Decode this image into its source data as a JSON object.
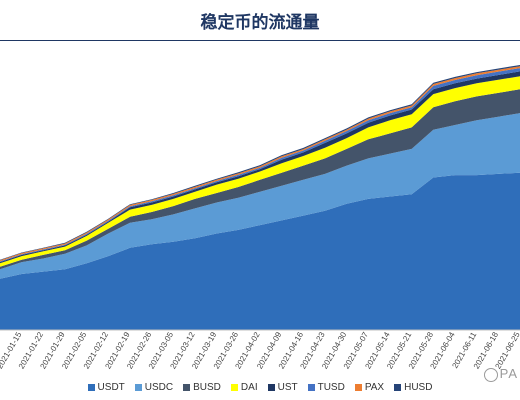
{
  "chart_data": {
    "type": "area",
    "title": "稳定币的流通量",
    "xlabel": "",
    "ylabel": "",
    "stacked": true,
    "grid": false,
    "legend_position": "bottom",
    "x": [
      "2021-01-08",
      "2021-01-15",
      "2021-01-22",
      "2021-01-29",
      "2021-02-05",
      "2021-02-12",
      "2021-02-19",
      "2021-02-26",
      "2021-03-05",
      "2021-03-12",
      "2021-03-19",
      "2021-03-26",
      "2021-04-02",
      "2021-04-09",
      "2021-04-16",
      "2021-04-23",
      "2021-04-30",
      "2021-05-07",
      "2021-05-14",
      "2021-05-21",
      "2021-05-28",
      "2021-06-04",
      "2021-06-11",
      "2021-06-18",
      "2021-06-25"
    ],
    "tick_labels": [
      "2021-01-08",
      "2021-01-15",
      "2021-01-22",
      "2021-01-29",
      "2021-02-05",
      "2021-02-12",
      "2021-02-19",
      "2021-02-26",
      "2021-03-05",
      "2021-03-12",
      "2021-03-19",
      "2021-03-26",
      "2021-04-02",
      "2021-04-09",
      "2021-04-16",
      "2021-04-23",
      "2021-04-30",
      "2021-05-07",
      "2021-05-14",
      "2021-05-21",
      "2021-05-28",
      "2021-06-04",
      "2021-06-11",
      "2021-06-18",
      "2021-06-25"
    ],
    "ylim": [
      0,
      120
    ],
    "series": [
      {
        "name": "USDT",
        "color": "#2f6eba",
        "values": [
          21.5,
          23.5,
          24.5,
          25.5,
          28,
          31,
          34.5,
          36,
          37,
          38.5,
          40.5,
          42,
          44,
          46,
          48,
          50,
          53,
          55,
          56,
          57,
          64,
          65,
          65,
          65.5,
          66
        ]
      },
      {
        "name": "USDC",
        "color": "#5b9bd5",
        "values": [
          4,
          5,
          5.5,
          6.5,
          7.5,
          9.5,
          10.5,
          10.5,
          11.5,
          12.5,
          13,
          13.5,
          14,
          14.5,
          15,
          15.5,
          16,
          17,
          18,
          19,
          20,
          21,
          23,
          24,
          25
        ]
      },
      {
        "name": "BUSD",
        "color": "#44546a",
        "values": [
          1,
          1,
          1.5,
          1.5,
          2,
          2,
          2.5,
          3,
          3.5,
          4,
          4,
          4.5,
          5,
          5.5,
          6,
          6.5,
          7,
          8,
          8.5,
          9,
          9.5,
          10,
          10,
          10,
          10
        ]
      },
      {
        "name": "DAI",
        "color": "#ffff00",
        "values": [
          1.5,
          1.5,
          1.5,
          1.5,
          2,
          2.5,
          3,
          3,
          3,
          3,
          3.5,
          3.5,
          3.5,
          4,
          4,
          4.5,
          4.5,
          5,
          5.5,
          5.5,
          5.5,
          5.5,
          5.5,
          5.5,
          5.5
        ]
      },
      {
        "name": "UST",
        "color": "#1f3763",
        "values": [
          0.5,
          0.5,
          0.5,
          0.5,
          0.5,
          0.5,
          1,
          1,
          1,
          1,
          1,
          1,
          1,
          1.5,
          1.5,
          2,
          2,
          2,
          2,
          2,
          2,
          2,
          2,
          2,
          2
        ]
      },
      {
        "name": "TUSD",
        "color": "#4472c4",
        "values": [
          0.3,
          0.3,
          0.3,
          0.3,
          0.4,
          0.4,
          0.4,
          0.5,
          0.5,
          0.5,
          0.5,
          0.6,
          0.6,
          0.8,
          0.8,
          0.9,
          1,
          1,
          1,
          1,
          1.4,
          1.4,
          1.4,
          1.4,
          1.4
        ]
      },
      {
        "name": "PAX",
        "color": "#ed7d31",
        "values": [
          0.5,
          0.5,
          0.5,
          0.5,
          0.5,
          0.5,
          0.6,
          0.6,
          0.6,
          0.6,
          0.6,
          0.6,
          0.6,
          0.6,
          0.6,
          0.6,
          0.6,
          0.7,
          0.7,
          0.7,
          0.8,
          0.8,
          0.8,
          0.8,
          0.8
        ]
      },
      {
        "name": "HUSD",
        "color": "#264478",
        "values": [
          0.2,
          0.2,
          0.2,
          0.3,
          0.3,
          0.3,
          0.3,
          0.3,
          0.4,
          0.4,
          0.4,
          0.5,
          0.5,
          0.5,
          0.5,
          0.5,
          0.5,
          0.5,
          0.5,
          0.5,
          0.5,
          0.5,
          0.5,
          0.5,
          0.5
        ]
      }
    ]
  },
  "watermark": "PA"
}
